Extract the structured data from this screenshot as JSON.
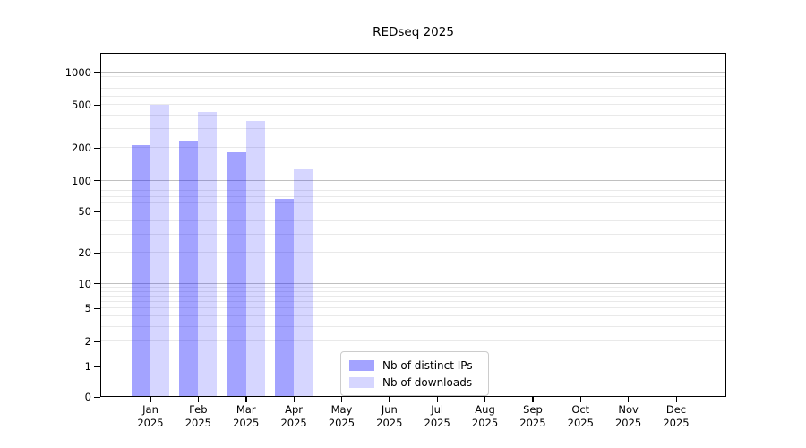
{
  "chart_data": {
    "type": "bar",
    "title": "REDseq 2025",
    "categories": [
      "Jan",
      "Feb",
      "Mar",
      "Apr",
      "May",
      "Jun",
      "Jul",
      "Aug",
      "Sep",
      "Oct",
      "Nov",
      "Dec"
    ],
    "year_label": "2025",
    "series": [
      {
        "name": "Nb of distinct IPs",
        "color": "#0000ff",
        "opacity": 0.36,
        "values": [
          210,
          230,
          180,
          65,
          null,
          null,
          null,
          null,
          null,
          null,
          null,
          null
        ]
      },
      {
        "name": "Nb of downloads",
        "color": "#0000ff",
        "opacity": 0.16,
        "values": [
          490,
          425,
          350,
          125,
          null,
          null,
          null,
          null,
          null,
          null,
          null,
          null
        ]
      }
    ],
    "yticks": [
      0,
      1,
      2,
      5,
      10,
      20,
      50,
      100,
      200,
      500,
      1000
    ],
    "yscale": "log-like (linear 0-1, log above 1)",
    "ylim": [
      0,
      1500
    ],
    "grid": {
      "orientation": "horizontal",
      "major_at": [
        1,
        10,
        100,
        1000
      ],
      "minor": "2-9 within each decade",
      "major_color": "#c0c0c0",
      "minor_color": "#e9e9e9"
    },
    "legend_position": "inside plot, bottom center-right",
    "xlabel": "",
    "ylabel": ""
  }
}
